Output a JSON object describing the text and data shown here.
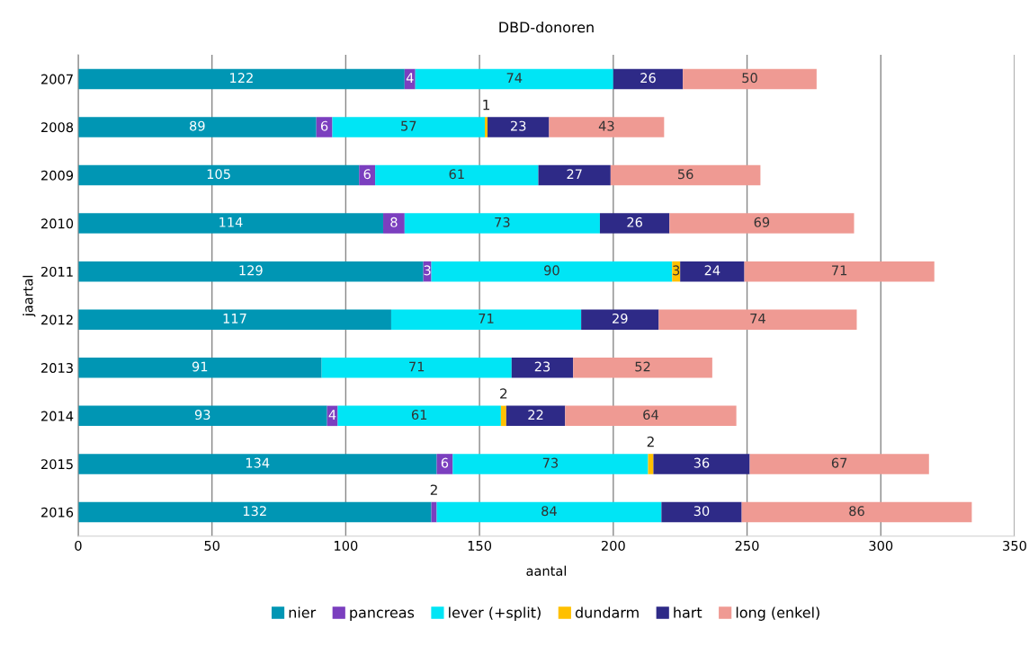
{
  "chart_data": {
    "type": "bar",
    "orientation": "horizontal",
    "stacked": true,
    "title": "DBD-donoren",
    "xlabel": "aantal",
    "ylabel": "jaartal",
    "categories": [
      "2007",
      "2008",
      "2009",
      "2010",
      "2011",
      "2012",
      "2013",
      "2014",
      "2015",
      "2016"
    ],
    "series": [
      {
        "name": "nier",
        "color": "#0096b4",
        "values": [
          122,
          89,
          105,
          114,
          129,
          117,
          91,
          93,
          134,
          132
        ]
      },
      {
        "name": "pancreas",
        "color": "#7b3fbf",
        "values": [
          4,
          6,
          6,
          8,
          3,
          null,
          null,
          4,
          6,
          2
        ]
      },
      {
        "name": "lever (+split)",
        "color": "#00e5f5",
        "values": [
          74,
          57,
          61,
          73,
          90,
          71,
          71,
          61,
          73,
          84
        ]
      },
      {
        "name": "dundarm",
        "color": "#ffc000",
        "values": [
          null,
          1,
          null,
          null,
          3,
          null,
          null,
          2,
          2,
          null
        ]
      },
      {
        "name": "hart",
        "color": "#2e2a87",
        "values": [
          26,
          23,
          27,
          26,
          24,
          29,
          23,
          22,
          36,
          30
        ]
      },
      {
        "name": "long (enkel)",
        "color": "#ef9a93",
        "values": [
          50,
          43,
          56,
          69,
          71,
          74,
          52,
          64,
          67,
          86
        ]
      }
    ],
    "xlim": [
      0,
      350
    ],
    "xticks": [
      0,
      50,
      100,
      150,
      200,
      250,
      300,
      350
    ],
    "grid": "x",
    "legend": "bottom",
    "data_labels": true
  }
}
